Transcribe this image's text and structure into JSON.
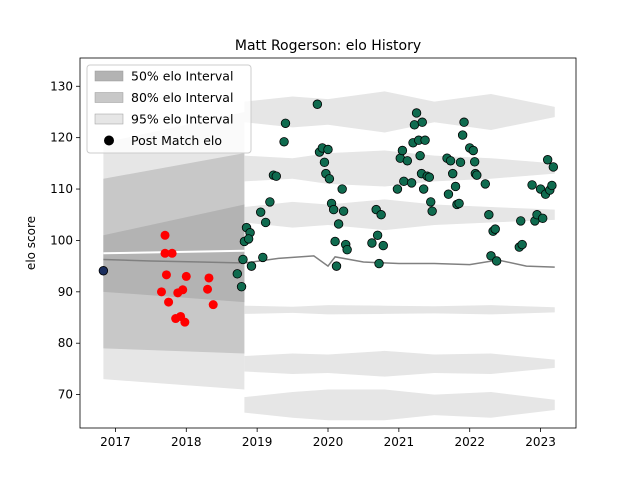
{
  "chart_data": {
    "type": "scatter",
    "title": "Matt Rogerson: elo History",
    "xlabel": "",
    "ylabel": "elo score",
    "xlim": [
      2016.5,
      2023.5
    ],
    "ylim": [
      63.5,
      135.5
    ],
    "x_ticks": [
      {
        "value": 2017,
        "label": "2017"
      },
      {
        "value": 2018,
        "label": "2018"
      },
      {
        "value": 2019,
        "label": "2019"
      },
      {
        "value": 2020,
        "label": "2020"
      },
      {
        "value": 2021,
        "label": "2021"
      },
      {
        "value": 2022,
        "label": "2022"
      },
      {
        "value": 2023,
        "label": "2023"
      }
    ],
    "y_ticks": [
      {
        "value": 70,
        "label": "70"
      },
      {
        "value": 80,
        "label": "80"
      },
      {
        "value": 90,
        "label": "90"
      },
      {
        "value": 100,
        "label": "100"
      },
      {
        "value": 110,
        "label": "110"
      },
      {
        "value": 120,
        "label": "120"
      },
      {
        "value": 130,
        "label": "130"
      }
    ],
    "grid": false,
    "legend_position": "top-left",
    "legend": [
      {
        "label": "50% elo Interval",
        "kind": "patch",
        "color": "#b3b3b3"
      },
      {
        "label": "80% elo Interval",
        "kind": "patch",
        "color": "#c8c8c8"
      },
      {
        "label": "95% elo Interval",
        "kind": "patch",
        "color": "#e6e6e6"
      },
      {
        "label": "Post Match elo",
        "kind": "marker",
        "color": "#000000"
      }
    ],
    "colors": {
      "initial_point": "#1a2e5e",
      "early_points": "#ff0000",
      "post_match_points": "#0f6b4f",
      "mean_line": "#808080",
      "band_50": "#b3b3b3",
      "band_80": "#c8c8c8",
      "band_95": "#e6e6e6"
    },
    "initial_point": {
      "x": 2016.83,
      "y": 94.1
    },
    "early_band": {
      "x": [
        2016.83,
        2018.82
      ],
      "p50": [
        [
          90.0,
          101.0
        ],
        [
          88.0,
          107.0
        ]
      ],
      "p80": [
        [
          79.0,
          112.0
        ],
        [
          78.0,
          117.0
        ]
      ],
      "p95": [
        [
          73.0,
          119.0
        ],
        [
          71.0,
          125.0
        ]
      ],
      "mean": [
        96.0,
        95.0
      ]
    },
    "upper_ribbons": [
      {
        "center": 125,
        "half": [
          2.0,
          3.0,
          2.5,
          4.0,
          2.0,
          3.5,
          1.0
        ]
      },
      {
        "center": 114,
        "half": [
          2.5,
          2.0,
          3.0,
          3.5,
          2.5,
          2.0,
          1.0
        ]
      },
      {
        "center": 105,
        "half": [
          1.5,
          2.5,
          2.0,
          3.0,
          2.0,
          1.5,
          1.0
        ]
      }
    ],
    "lower_ribbons": [
      {
        "center": 86.5,
        "half": [
          0.8,
          0.6,
          0.9,
          0.8,
          0.7,
          0.9,
          0.5
        ]
      },
      {
        "center": 76.0,
        "half": [
          1.5,
          2.0,
          1.8,
          2.5,
          1.8,
          2.0,
          0.8
        ]
      },
      {
        "center": 68.0,
        "half": [
          1.5,
          2.5,
          3.0,
          3.0,
          2.0,
          2.5,
          1.0
        ]
      }
    ],
    "ribbon_x": [
      2018.82,
      2019.5,
      2020.0,
      2020.8,
      2021.5,
      2022.3,
      2023.2
    ],
    "mean_line": {
      "x": [
        2016.83,
        2017.5,
        2018.2,
        2018.82,
        2019.3,
        2019.8,
        2020.0,
        2020.1,
        2020.5,
        2021.0,
        2021.5,
        2022.0,
        2022.4,
        2022.8,
        2023.2
      ],
      "y": [
        96.3,
        96.0,
        95.8,
        95.6,
        96.5,
        97.0,
        95.0,
        96.8,
        95.8,
        95.5,
        95.5,
        95.3,
        96.2,
        95.0,
        94.8
      ]
    },
    "early_points": [
      {
        "x": 2017.7,
        "y": 101.0
      },
      {
        "x": 2017.7,
        "y": 97.5
      },
      {
        "x": 2017.8,
        "y": 97.5
      },
      {
        "x": 2017.72,
        "y": 93.3
      },
      {
        "x": 2017.65,
        "y": 90.0
      },
      {
        "x": 2017.88,
        "y": 89.8
      },
      {
        "x": 2017.95,
        "y": 90.4
      },
      {
        "x": 2018.0,
        "y": 93.0
      },
      {
        "x": 2017.75,
        "y": 88.0
      },
      {
        "x": 2017.85,
        "y": 84.8
      },
      {
        "x": 2017.92,
        "y": 85.2
      },
      {
        "x": 2017.98,
        "y": 84.1
      },
      {
        "x": 2018.32,
        "y": 92.7
      },
      {
        "x": 2018.3,
        "y": 90.5
      },
      {
        "x": 2018.38,
        "y": 87.5
      }
    ],
    "post_match_points": [
      {
        "x": 2018.72,
        "y": 93.5
      },
      {
        "x": 2018.78,
        "y": 91.0
      },
      {
        "x": 2018.8,
        "y": 96.3
      },
      {
        "x": 2018.82,
        "y": 99.8
      },
      {
        "x": 2018.85,
        "y": 102.5
      },
      {
        "x": 2018.9,
        "y": 101.5
      },
      {
        "x": 2018.92,
        "y": 95.0
      },
      {
        "x": 2018.88,
        "y": 100.3
      },
      {
        "x": 2019.05,
        "y": 105.5
      },
      {
        "x": 2019.12,
        "y": 103.5
      },
      {
        "x": 2019.08,
        "y": 96.7
      },
      {
        "x": 2019.18,
        "y": 107.5
      },
      {
        "x": 2019.23,
        "y": 112.7
      },
      {
        "x": 2019.27,
        "y": 112.5
      },
      {
        "x": 2019.38,
        "y": 119.2
      },
      {
        "x": 2019.4,
        "y": 122.8
      },
      {
        "x": 2019.85,
        "y": 126.5
      },
      {
        "x": 2019.88,
        "y": 117.2
      },
      {
        "x": 2019.92,
        "y": 118.0
      },
      {
        "x": 2019.95,
        "y": 115.2
      },
      {
        "x": 2019.97,
        "y": 113.0
      },
      {
        "x": 2020.02,
        "y": 112.0
      },
      {
        "x": 2020.0,
        "y": 117.7
      },
      {
        "x": 2020.05,
        "y": 107.2
      },
      {
        "x": 2020.08,
        "y": 106.0
      },
      {
        "x": 2020.1,
        "y": 99.8
      },
      {
        "x": 2020.12,
        "y": 95.0
      },
      {
        "x": 2020.15,
        "y": 103.2
      },
      {
        "x": 2020.2,
        "y": 110.0
      },
      {
        "x": 2020.22,
        "y": 105.7
      },
      {
        "x": 2020.25,
        "y": 99.2
      },
      {
        "x": 2020.27,
        "y": 98.2
      },
      {
        "x": 2020.62,
        "y": 99.5
      },
      {
        "x": 2020.68,
        "y": 106.0
      },
      {
        "x": 2020.7,
        "y": 101.0
      },
      {
        "x": 2020.72,
        "y": 95.5
      },
      {
        "x": 2020.75,
        "y": 105.0
      },
      {
        "x": 2020.78,
        "y": 99.0
      },
      {
        "x": 2020.98,
        "y": 110.0
      },
      {
        "x": 2021.02,
        "y": 116.0
      },
      {
        "x": 2021.05,
        "y": 117.5
      },
      {
        "x": 2021.07,
        "y": 111.5
      },
      {
        "x": 2021.12,
        "y": 115.5
      },
      {
        "x": 2021.18,
        "y": 111.2
      },
      {
        "x": 2021.2,
        "y": 119.0
      },
      {
        "x": 2021.22,
        "y": 122.5
      },
      {
        "x": 2021.25,
        "y": 124.8
      },
      {
        "x": 2021.28,
        "y": 119.5
      },
      {
        "x": 2021.3,
        "y": 116.5
      },
      {
        "x": 2021.32,
        "y": 113.0
      },
      {
        "x": 2021.33,
        "y": 123.0
      },
      {
        "x": 2021.35,
        "y": 110.0
      },
      {
        "x": 2021.37,
        "y": 119.5
      },
      {
        "x": 2021.4,
        "y": 112.5
      },
      {
        "x": 2021.43,
        "y": 112.3
      },
      {
        "x": 2021.45,
        "y": 107.5
      },
      {
        "x": 2021.47,
        "y": 105.7
      },
      {
        "x": 2021.68,
        "y": 116.0
      },
      {
        "x": 2021.7,
        "y": 109.0
      },
      {
        "x": 2021.73,
        "y": 115.5
      },
      {
        "x": 2021.76,
        "y": 113.0
      },
      {
        "x": 2021.8,
        "y": 110.5
      },
      {
        "x": 2021.82,
        "y": 107.0
      },
      {
        "x": 2021.85,
        "y": 107.2
      },
      {
        "x": 2021.87,
        "y": 115.2
      },
      {
        "x": 2021.9,
        "y": 120.5
      },
      {
        "x": 2021.92,
        "y": 123.0
      },
      {
        "x": 2022.0,
        "y": 118.0
      },
      {
        "x": 2022.05,
        "y": 117.5
      },
      {
        "x": 2022.07,
        "y": 115.3
      },
      {
        "x": 2022.08,
        "y": 113.0
      },
      {
        "x": 2022.1,
        "y": 112.7
      },
      {
        "x": 2022.22,
        "y": 111.0
      },
      {
        "x": 2022.27,
        "y": 105.0
      },
      {
        "x": 2022.3,
        "y": 97.0
      },
      {
        "x": 2022.33,
        "y": 101.8
      },
      {
        "x": 2022.36,
        "y": 102.2
      },
      {
        "x": 2022.38,
        "y": 96.0
      },
      {
        "x": 2022.7,
        "y": 98.7
      },
      {
        "x": 2022.72,
        "y": 103.8
      },
      {
        "x": 2022.74,
        "y": 99.2
      },
      {
        "x": 2022.88,
        "y": 110.8
      },
      {
        "x": 2022.92,
        "y": 103.8
      },
      {
        "x": 2022.95,
        "y": 105.0
      },
      {
        "x": 2023.0,
        "y": 110.0
      },
      {
        "x": 2023.03,
        "y": 104.3
      },
      {
        "x": 2023.07,
        "y": 109.0
      },
      {
        "x": 2023.1,
        "y": 115.7
      },
      {
        "x": 2023.13,
        "y": 109.8
      },
      {
        "x": 2023.16,
        "y": 110.7
      },
      {
        "x": 2023.18,
        "y": 114.3
      }
    ]
  }
}
